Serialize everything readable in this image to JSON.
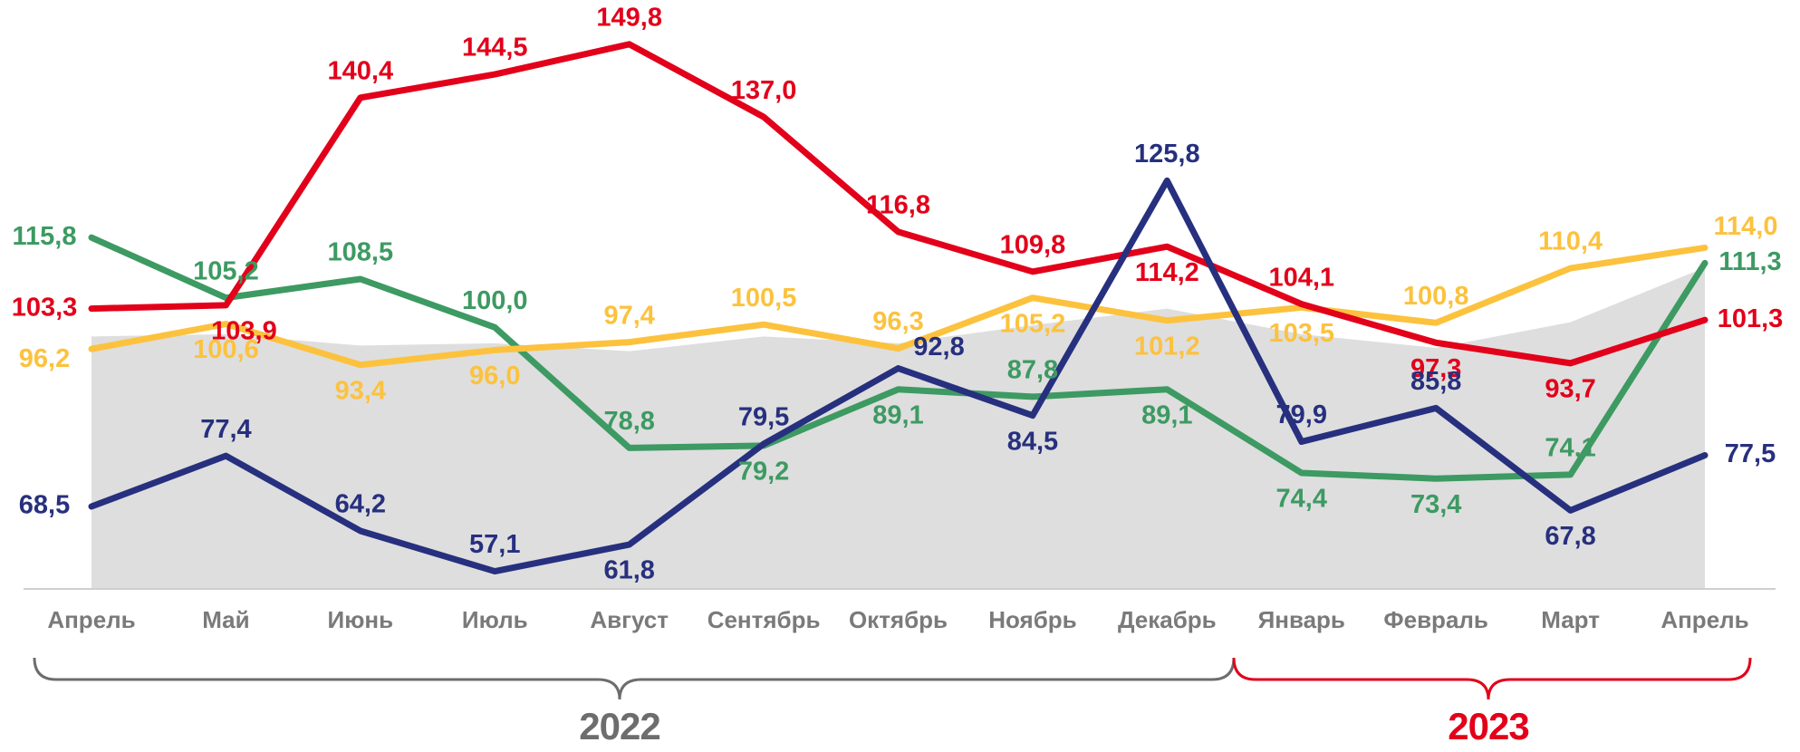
{
  "chart_data": {
    "type": "line",
    "categories": [
      "Апрель",
      "Май",
      "Июнь",
      "Июль",
      "Август",
      "Сентябрь",
      "Октябрь",
      "Ноябрь",
      "Декабрь",
      "Январь",
      "Февраль",
      "Март",
      "Апрель"
    ],
    "ylim": [
      54,
      152
    ],
    "background_area": {
      "color": "#dedede",
      "values": [
        98.4,
        98.8,
        96.8,
        97.2,
        95.8,
        98.4,
        97.2,
        100.4,
        103.3,
        98.8,
        96.4,
        100.9,
        110.5
      ]
    },
    "series": [
      {
        "color": "#3d9a62",
        "values": [
          115.8,
          105.2,
          108.5,
          100.0,
          78.8,
          79.2,
          89.1,
          87.8,
          89.1,
          74.4,
          73.4,
          74.1,
          111.3
        ],
        "value_labels": [
          "115,8",
          "105,2",
          "108,5",
          "100,0",
          "78,8",
          "79,2",
          "89,1",
          "87,8",
          "89,1",
          "74,4",
          "73,4",
          "74,1",
          "111,3"
        ]
      },
      {
        "color": "#fcc23e",
        "values": [
          96.2,
          100.6,
          93.4,
          96.0,
          97.4,
          100.5,
          96.3,
          105.2,
          101.2,
          103.5,
          100.8,
          110.4,
          114.0
        ],
        "value_labels": [
          "96,2",
          "100,6",
          "93,4",
          "96,0",
          "97,4",
          "100,5",
          "96,3",
          "105,2",
          "101,2",
          "103,5",
          "100,8",
          "110,4",
          "114,0"
        ]
      },
      {
        "color": "#e2001a",
        "values": [
          103.3,
          103.9,
          140.4,
          144.5,
          149.8,
          137.0,
          116.8,
          109.8,
          114.2,
          104.1,
          97.3,
          93.7,
          101.3
        ],
        "value_labels": [
          "103,3",
          "103,9",
          "140,4",
          "144,5",
          "149,8",
          "137,0",
          "116,8",
          "109,8",
          "114,2",
          "104,1",
          "97,3",
          "93,7",
          "101,3"
        ]
      },
      {
        "color": "#27307e",
        "values": [
          68.5,
          77.4,
          64.2,
          57.1,
          61.8,
          79.5,
          92.8,
          84.5,
          125.8,
          79.9,
          85.8,
          67.8,
          77.5
        ],
        "value_labels": [
          "68,5",
          "77,4",
          "64,2",
          "57,1",
          "61,8",
          "79,5",
          "92,8",
          "84,5",
          "125,8",
          "79,9",
          "85,8",
          "67,8",
          "77,5"
        ]
      }
    ],
    "year_labels": [
      {
        "text": "2022",
        "color": "#6d6d6d"
      },
      {
        "text": "2023",
        "color": "#e2001a"
      }
    ]
  }
}
